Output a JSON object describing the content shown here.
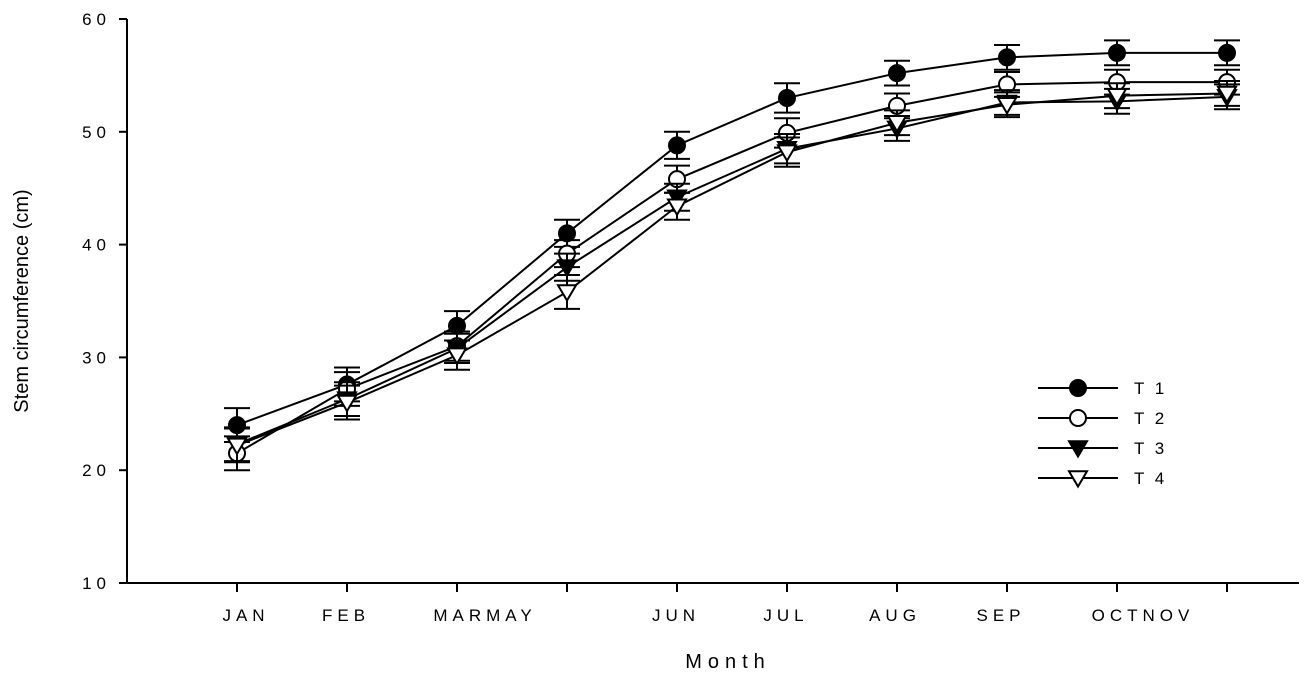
{
  "chart_data": {
    "type": "line",
    "xlabel": "Month",
    "ylabel": "Stem circumference (cm)",
    "ylim": [
      10,
      60
    ],
    "yticks": [
      "10",
      "20",
      "30",
      "40",
      "50",
      "60"
    ],
    "x_tick_labels": [
      "JAN",
      "FEB",
      "MARMAY",
      "JUN",
      "JUL",
      "AUG",
      "SEP",
      "OCTNOV"
    ],
    "categories": [
      "JAN",
      "FEB",
      "MAR",
      "MAY",
      "JUN",
      "JUL",
      "AUG",
      "SEP",
      "OCT",
      "NOV"
    ],
    "grid": false,
    "legend_position": "right",
    "series": [
      {
        "name": "T 1",
        "marker": "filled-circle",
        "values": [
          24.0,
          27.6,
          32.8,
          41.0,
          48.8,
          53.0,
          55.2,
          56.6,
          57.0,
          57.0
        ],
        "errors": [
          1.5,
          1.5,
          1.3,
          1.2,
          1.2,
          1.3,
          1.1,
          1.1,
          1.1,
          1.1
        ]
      },
      {
        "name": "T 2",
        "marker": "open-circle",
        "values": [
          21.5,
          27.2,
          31.0,
          39.2,
          45.8,
          49.9,
          52.3,
          54.2,
          54.4,
          54.4
        ],
        "errors": [
          1.5,
          1.5,
          1.3,
          1.2,
          1.2,
          1.3,
          1.1,
          1.1,
          1.1,
          1.1
        ]
      },
      {
        "name": "T 3",
        "marker": "filled-triangle-down",
        "values": [
          22.3,
          26.3,
          30.8,
          38.0,
          44.2,
          48.5,
          50.3,
          52.6,
          52.7,
          53.1
        ],
        "errors": [
          1.5,
          1.5,
          1.3,
          1.2,
          1.2,
          1.3,
          1.1,
          1.1,
          1.1,
          1.1
        ]
      },
      {
        "name": "T 4",
        "marker": "open-triangle-down",
        "values": [
          22.2,
          26.0,
          30.2,
          35.8,
          43.4,
          48.2,
          50.8,
          52.4,
          53.2,
          53.4
        ],
        "errors": [
          1.5,
          1.5,
          1.3,
          1.5,
          1.2,
          1.3,
          1.1,
          1.1,
          1.1,
          1.1
        ]
      }
    ]
  }
}
